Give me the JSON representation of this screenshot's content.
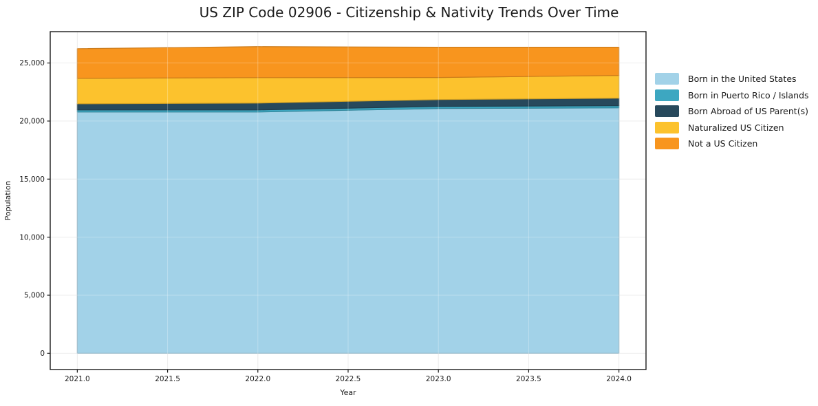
{
  "chart_data": {
    "type": "area",
    "stacked": true,
    "title": "US ZIP Code 02906 - Citizenship & Nativity Trends Over Time",
    "xlabel": "Year",
    "ylabel": "Population",
    "x": [
      2021,
      2022,
      2023,
      2024
    ],
    "series": [
      {
        "name": "Born in the United States",
        "color": "#A2D2E8",
        "values": [
          20780,
          20780,
          21080,
          21140
        ]
      },
      {
        "name": "Born in Puerto Rico / Islands",
        "color": "#3DA7C1",
        "values": [
          180,
          180,
          180,
          180
        ]
      },
      {
        "name": "Born Abroad of US Parent(s)",
        "color": "#27495C",
        "values": [
          530,
          590,
          590,
          650
        ]
      },
      {
        "name": "Naturalized US Citizen",
        "color": "#FCC22D",
        "values": [
          2190,
          2190,
          1900,
          1960
        ]
      },
      {
        "name": "Not a US Citizen",
        "color": "#F8951E",
        "values": [
          2550,
          2670,
          2610,
          2430
        ]
      }
    ],
    "stacked_totals": [
      26230,
      26410,
      26360,
      26360
    ],
    "xticks": [
      2021.0,
      2021.5,
      2022.0,
      2022.5,
      2023.0,
      2023.5,
      2024.0
    ],
    "xtick_labels": [
      "2021.0",
      "2021.5",
      "2022.0",
      "2022.5",
      "2023.0",
      "2023.5",
      "2024.0"
    ],
    "yticks": [
      0,
      5000,
      10000,
      15000,
      20000,
      25000
    ],
    "ytick_labels": [
      "0",
      "5,000",
      "10,000",
      "15,000",
      "20,000",
      "25,000"
    ],
    "xlim": [
      2020.85,
      2024.15
    ],
    "ylim": [
      -1400,
      27700
    ],
    "grid": true,
    "legend_position": "right-outside",
    "colors": {
      "spine": "#1a1a1a",
      "grid": "#e6e6e6",
      "text": "#1a1a1a",
      "background": "#ffffff"
    }
  }
}
